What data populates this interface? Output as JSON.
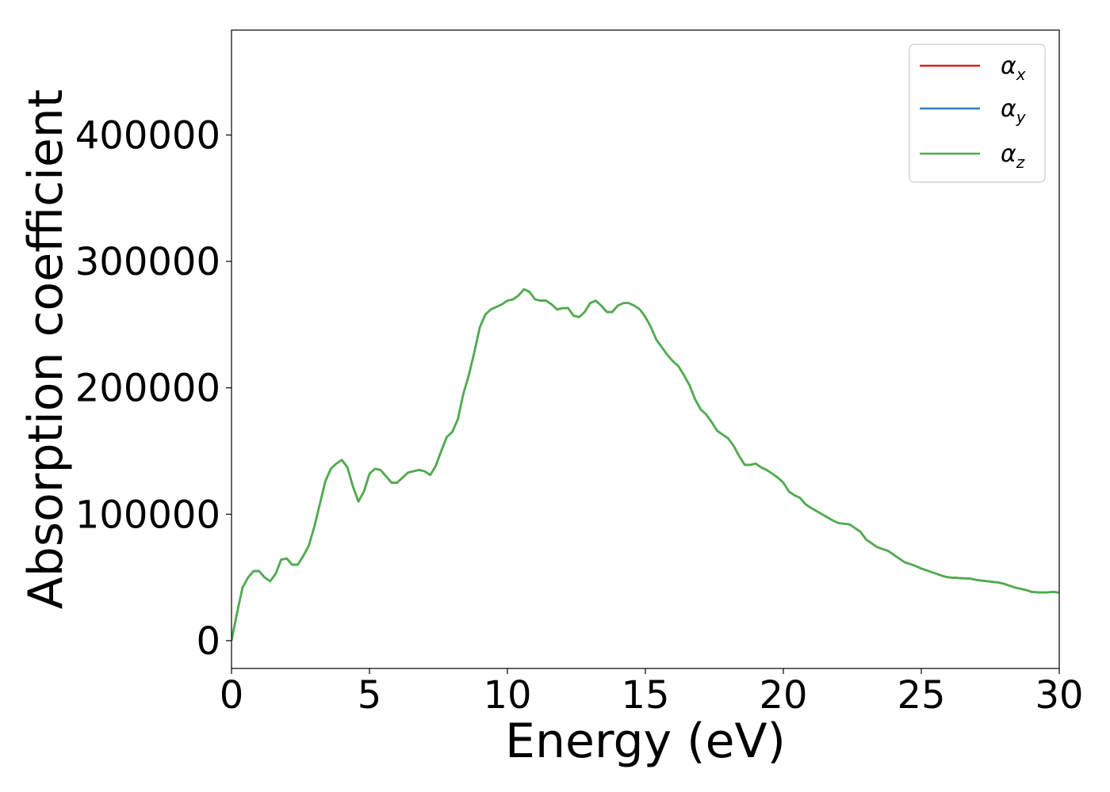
{
  "chart_data": {
    "type": "line",
    "title": "",
    "xlabel": "Energy (eV)",
    "ylabel": "Absorption coefficient",
    "xlim": [
      0,
      30
    ],
    "ylim": [
      -22000,
      483000
    ],
    "xticks": [
      0,
      5,
      10,
      15,
      20,
      25,
      30
    ],
    "yticks": [
      0,
      100000,
      200000,
      300000,
      400000
    ],
    "grid": false,
    "legend_position": "top-right",
    "series": [
      {
        "name": "α",
        "subscript": "x",
        "color": "#e41a1c",
        "x": [
          0,
          0.2,
          0.4,
          0.6,
          0.8,
          1.0,
          1.2,
          1.4,
          1.6,
          1.8,
          2.0,
          2.2,
          2.4,
          2.6,
          2.8,
          3.0,
          3.2,
          3.4,
          3.6,
          3.8,
          4.0,
          4.2,
          4.4,
          4.6,
          4.8,
          5.0,
          5.2,
          5.4,
          5.6,
          5.8,
          6.0,
          6.2,
          6.4,
          6.6,
          6.8,
          7.0,
          7.2,
          7.4,
          7.6,
          7.8,
          8.0,
          8.2,
          8.4,
          8.6,
          8.8,
          9.0,
          9.2,
          9.4,
          9.6,
          9.8,
          10.0,
          10.2,
          10.4,
          10.6,
          10.8,
          11.0,
          11.2,
          11.4,
          11.6,
          11.8,
          12.0,
          12.2,
          12.4,
          12.6,
          12.8,
          13.0,
          13.2,
          13.4,
          13.6,
          13.8,
          14.0,
          14.2,
          14.4,
          14.6,
          14.8,
          15.0,
          15.2,
          15.4,
          15.6,
          15.8,
          16.0,
          16.2,
          16.4,
          16.6,
          16.8,
          17.0,
          17.2,
          17.4,
          17.6,
          17.8,
          18.0,
          18.2,
          18.4,
          18.6,
          18.8,
          19.0,
          19.2,
          19.4,
          19.6,
          19.8,
          20.0,
          20.2,
          20.4,
          20.6,
          20.8,
          21.0,
          21.4,
          21.8,
          22.0,
          22.4,
          22.8,
          23.0,
          23.4,
          23.8,
          24.0,
          24.4,
          24.8,
          25.0,
          25.4,
          25.8,
          26.0,
          26.4,
          26.8,
          27.0,
          27.4,
          27.8,
          28.0,
          28.4,
          28.8,
          29.0,
          29.4,
          29.8,
          30.0
        ],
        "y": [
          0,
          22000,
          42000,
          50000,
          55000,
          55000,
          50000,
          47000,
          53000,
          64000,
          65000,
          60000,
          60000,
          67000,
          75000,
          90000,
          108000,
          126000,
          136000,
          140000,
          143000,
          137000,
          122000,
          110000,
          118000,
          132000,
          136000,
          135000,
          130000,
          125000,
          125000,
          129000,
          133000,
          134000,
          135000,
          134000,
          131000,
          138000,
          150000,
          161000,
          165000,
          175000,
          195000,
          210000,
          228000,
          248000,
          258000,
          262000,
          264000,
          266000,
          269000,
          270000,
          273000,
          278000,
          276000,
          270000,
          269000,
          269000,
          266000,
          262000,
          263000,
          263000,
          257000,
          256000,
          260000,
          267000,
          269000,
          265000,
          260000,
          260000,
          265000,
          267000,
          267000,
          265000,
          262000,
          256000,
          248000,
          238000,
          232000,
          226000,
          221000,
          217000,
          210000,
          202000,
          191000,
          183000,
          179000,
          173000,
          166000,
          163000,
          160000,
          154000,
          146000,
          139000,
          139000,
          140000,
          137000,
          135000,
          132000,
          129000,
          125000,
          118000,
          115000,
          113000,
          108000,
          105000,
          100000,
          95000,
          93000,
          92000,
          86000,
          80000,
          74000,
          71000,
          68000,
          62000,
          59000,
          57000,
          54000,
          51000,
          50000,
          49500,
          49000,
          48000,
          47000,
          46000,
          45000,
          42000,
          40000,
          38500,
          38000,
          38500,
          38000
        ]
      },
      {
        "name": "α",
        "subscript": "y",
        "color": "#377eb8",
        "x": [
          0,
          0.2,
          0.4,
          0.6,
          0.8,
          1.0,
          1.2,
          1.4,
          1.6,
          1.8,
          2.0,
          2.2,
          2.4,
          2.6,
          2.8,
          3.0,
          3.2,
          3.4,
          3.6,
          3.8,
          4.0,
          4.2,
          4.4,
          4.6,
          4.8,
          5.0,
          5.2,
          5.4,
          5.6,
          5.8,
          6.0,
          6.2,
          6.4,
          6.6,
          6.8,
          7.0,
          7.2,
          7.4,
          7.6,
          7.8,
          8.0,
          8.2,
          8.4,
          8.6,
          8.8,
          9.0,
          9.2,
          9.4,
          9.6,
          9.8,
          10.0,
          10.2,
          10.4,
          10.6,
          10.8,
          11.0,
          11.2,
          11.4,
          11.6,
          11.8,
          12.0,
          12.2,
          12.4,
          12.6,
          12.8,
          13.0,
          13.2,
          13.4,
          13.6,
          13.8,
          14.0,
          14.2,
          14.4,
          14.6,
          14.8,
          15.0,
          15.2,
          15.4,
          15.6,
          15.8,
          16.0,
          16.2,
          16.4,
          16.6,
          16.8,
          17.0,
          17.2,
          17.4,
          17.6,
          17.8,
          18.0,
          18.2,
          18.4,
          18.6,
          18.8,
          19.0,
          19.2,
          19.4,
          19.6,
          19.8,
          20.0,
          20.2,
          20.4,
          20.6,
          20.8,
          21.0,
          21.4,
          21.8,
          22.0,
          22.4,
          22.8,
          23.0,
          23.4,
          23.8,
          24.0,
          24.4,
          24.8,
          25.0,
          25.4,
          25.8,
          26.0,
          26.4,
          26.8,
          27.0,
          27.4,
          27.8,
          28.0,
          28.4,
          28.8,
          29.0,
          29.4,
          29.8,
          30.0
        ],
        "y": [
          0,
          22000,
          42000,
          50000,
          55000,
          55000,
          50000,
          47000,
          53000,
          64000,
          65000,
          60000,
          60000,
          67000,
          75000,
          90000,
          108000,
          126000,
          136000,
          140000,
          143000,
          137000,
          122000,
          110000,
          118000,
          132000,
          136000,
          135000,
          130000,
          125000,
          125000,
          129000,
          133000,
          134000,
          135000,
          134000,
          131000,
          138000,
          150000,
          161000,
          165000,
          175000,
          195000,
          210000,
          228000,
          248000,
          258000,
          262000,
          264000,
          266000,
          269000,
          270000,
          273000,
          278000,
          276000,
          270000,
          269000,
          269000,
          266000,
          262000,
          263000,
          263000,
          257000,
          256000,
          260000,
          267000,
          269000,
          265000,
          260000,
          260000,
          265000,
          267000,
          267000,
          265000,
          262000,
          256000,
          248000,
          238000,
          232000,
          226000,
          221000,
          217000,
          210000,
          202000,
          191000,
          183000,
          179000,
          173000,
          166000,
          163000,
          160000,
          154000,
          146000,
          139000,
          139000,
          140000,
          137000,
          135000,
          132000,
          129000,
          125000,
          118000,
          115000,
          113000,
          108000,
          105000,
          100000,
          95000,
          93000,
          92000,
          86000,
          80000,
          74000,
          71000,
          68000,
          62000,
          59000,
          57000,
          54000,
          51000,
          50000,
          49500,
          49000,
          48000,
          47000,
          46000,
          45000,
          42000,
          40000,
          38500,
          38000,
          38500,
          38000
        ]
      },
      {
        "name": "α",
        "subscript": "z",
        "color": "#4daf4a",
        "x": [
          0,
          0.2,
          0.4,
          0.6,
          0.8,
          1.0,
          1.2,
          1.4,
          1.6,
          1.8,
          2.0,
          2.2,
          2.4,
          2.6,
          2.8,
          3.0,
          3.2,
          3.4,
          3.6,
          3.8,
          4.0,
          4.2,
          4.4,
          4.6,
          4.8,
          5.0,
          5.2,
          5.4,
          5.6,
          5.8,
          6.0,
          6.2,
          6.4,
          6.6,
          6.8,
          7.0,
          7.2,
          7.4,
          7.6,
          7.8,
          8.0,
          8.2,
          8.4,
          8.6,
          8.8,
          9.0,
          9.2,
          9.4,
          9.6,
          9.8,
          10.0,
          10.2,
          10.4,
          10.6,
          10.8,
          11.0,
          11.2,
          11.4,
          11.6,
          11.8,
          12.0,
          12.2,
          12.4,
          12.6,
          12.8,
          13.0,
          13.2,
          13.4,
          13.6,
          13.8,
          14.0,
          14.2,
          14.4,
          14.6,
          14.8,
          15.0,
          15.2,
          15.4,
          15.6,
          15.8,
          16.0,
          16.2,
          16.4,
          16.6,
          16.8,
          17.0,
          17.2,
          17.4,
          17.6,
          17.8,
          18.0,
          18.2,
          18.4,
          18.6,
          18.8,
          19.0,
          19.2,
          19.4,
          19.6,
          19.8,
          20.0,
          20.2,
          20.4,
          20.6,
          20.8,
          21.0,
          21.4,
          21.8,
          22.0,
          22.4,
          22.8,
          23.0,
          23.4,
          23.8,
          24.0,
          24.4,
          24.8,
          25.0,
          25.4,
          25.8,
          26.0,
          26.4,
          26.8,
          27.0,
          27.4,
          27.8,
          28.0,
          28.4,
          28.8,
          29.0,
          29.4,
          29.8,
          30.0
        ],
        "y": [
          0,
          22000,
          42000,
          50000,
          55000,
          55000,
          50000,
          47000,
          53000,
          64000,
          65000,
          60000,
          60000,
          67000,
          75000,
          90000,
          108000,
          126000,
          136000,
          140000,
          143000,
          137000,
          122000,
          110000,
          118000,
          132000,
          136000,
          135000,
          130000,
          125000,
          125000,
          129000,
          133000,
          134000,
          135000,
          134000,
          131000,
          138000,
          150000,
          161000,
          165000,
          175000,
          195000,
          210000,
          228000,
          248000,
          258000,
          262000,
          264000,
          266000,
          269000,
          270000,
          273000,
          278000,
          276000,
          270000,
          269000,
          269000,
          266000,
          262000,
          263000,
          263000,
          257000,
          256000,
          260000,
          267000,
          269000,
          265000,
          260000,
          260000,
          265000,
          267000,
          267000,
          265000,
          262000,
          256000,
          248000,
          238000,
          232000,
          226000,
          221000,
          217000,
          210000,
          202000,
          191000,
          183000,
          179000,
          173000,
          166000,
          163000,
          160000,
          154000,
          146000,
          139000,
          139000,
          140000,
          137000,
          135000,
          132000,
          129000,
          125000,
          118000,
          115000,
          113000,
          108000,
          105000,
          100000,
          95000,
          93000,
          92000,
          86000,
          80000,
          74000,
          71000,
          68000,
          62000,
          59000,
          57000,
          54000,
          51000,
          50000,
          49500,
          49000,
          48000,
          47000,
          46000,
          45000,
          42000,
          40000,
          38500,
          38000,
          38500,
          38000
        ]
      }
    ]
  }
}
